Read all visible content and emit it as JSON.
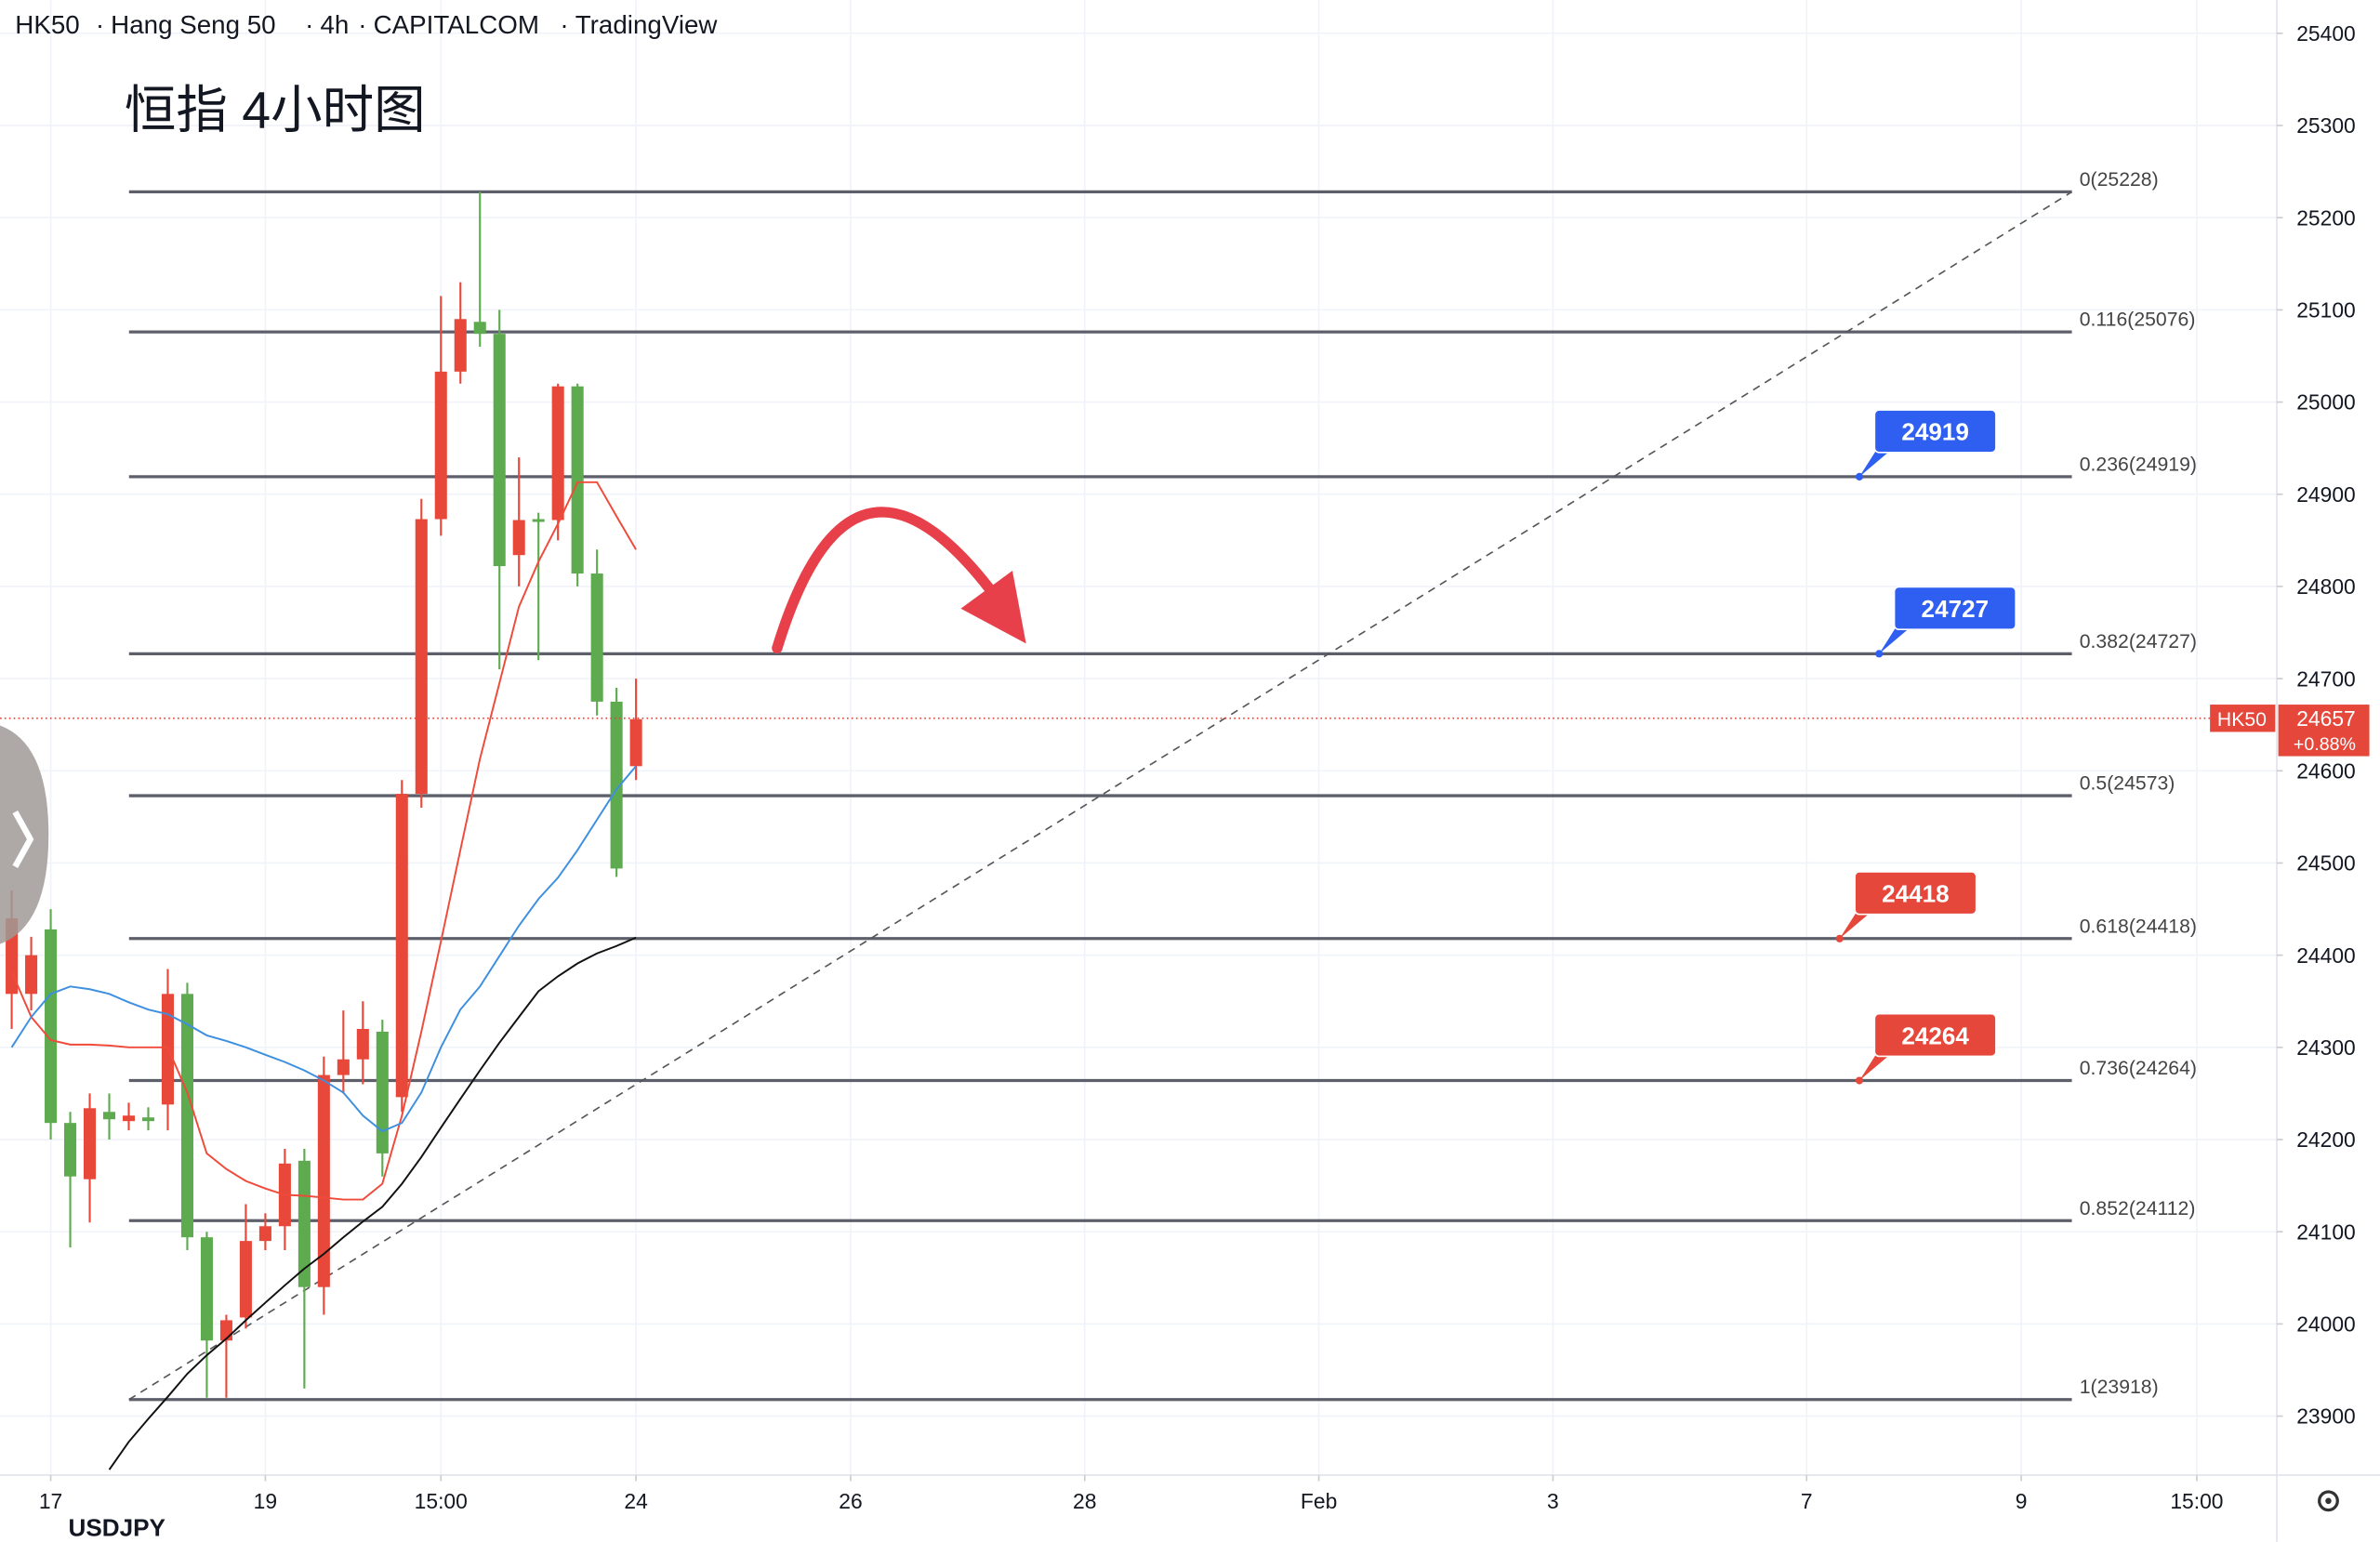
{
  "header": {
    "symbol": "HK50",
    "name": "Hang Seng 50",
    "interval": "4h",
    "exchange": "CAPITALCOM",
    "source": "TradingView"
  },
  "watermark": "USDJPY",
  "chart_data": {
    "type": "candlestick",
    "title": "恒指 4小时图",
    "up_color": "#e8483a",
    "down_color": "#5daa4f",
    "open": [
      24358,
      24358,
      24428,
      24218,
      24157,
      24230,
      24220,
      24224,
      24238,
      24358,
      24094,
      23982,
      24007,
      24090,
      24106,
      24177,
      24040,
      24270,
      24287,
      24317,
      24246,
      24575,
      24873,
      25033,
      25087,
      25074,
      24834,
      24873,
      24872,
      25017,
      24814,
      24675,
      24605
    ],
    "high": [
      24470,
      24420,
      24450,
      24230,
      24250,
      24250,
      24240,
      24235,
      24385,
      24370,
      24100,
      24010,
      24130,
      24120,
      24190,
      24190,
      24290,
      24340,
      24350,
      24330,
      24590,
      24895,
      25115,
      25130,
      25228,
      25100,
      24940,
      24880,
      25020,
      25020,
      24840,
      24690,
      24700
    ],
    "low": [
      24320,
      24340,
      24200,
      24083,
      24110,
      24200,
      24210,
      24210,
      24210,
      24080,
      23920,
      23920,
      23995,
      24080,
      24080,
      23930,
      24010,
      24250,
      24260,
      24160,
      24230,
      24560,
      24855,
      25020,
      25060,
      24710,
      24800,
      24720,
      24850,
      24800,
      24660,
      24485,
      24590
    ],
    "close": [
      24440,
      24400,
      24218,
      24160,
      24234,
      24222,
      24226,
      24220,
      24358,
      24094,
      23982,
      24004,
      24090,
      24106,
      24174,
      24040,
      24270,
      24287,
      24320,
      24185,
      24575,
      24873,
      25033,
      25090,
      25074,
      24822,
      24872,
      24870,
      25017,
      24814,
      24675,
      24494,
      24656
    ],
    "overlays": [
      {
        "color": "#f04a3a",
        "values": [
          24382,
          24333,
          24308,
          24303,
          24303,
          24302,
          24300,
          24300,
          24300,
          24251,
          24185,
          24168,
          24155,
          24147,
          24140,
          24139,
          24137,
          24135,
          24135,
          24152,
          24226,
          24317,
          24415,
          24514,
          24613,
          24695,
          24778,
          24827,
          24868,
          24913,
          24913,
          24876,
          24840
        ]
      },
      {
        "color": "#3d8fe0",
        "values": [
          24300,
          24333,
          24358,
          24366,
          24363,
          24358,
          24349,
          24341,
          24336,
          24325,
          24313,
          24307,
          24300,
          24292,
          24284,
          24275,
          24264,
          24251,
          24226,
          24209,
          24218,
          24251,
          24300,
          24341,
          24366,
          24399,
          24432,
          24461,
          24484,
          24514,
          24547,
          24580,
          24605
        ]
      },
      {
        "color": "#111111",
        "values": [
          null,
          null,
          null,
          null,
          null,
          23842,
          23872,
          23897,
          23921,
          23946,
          23966,
          23984,
          24004,
          24023,
          24042,
          24060,
          24076,
          24094,
          24111,
          24127,
          24152,
          24181,
          24213,
          24244,
          24275,
          24305,
          24333,
          24361,
          24377,
          24391,
          24402,
          24410,
          24419
        ]
      }
    ],
    "levels": [
      {
        "value": 25228,
        "label": "0(25228)"
      },
      {
        "value": 25076,
        "label": "0.116(25076)"
      },
      {
        "value": 24919,
        "label": "0.236(24919)"
      },
      {
        "value": 24727,
        "label": "0.382(24727)"
      },
      {
        "value": 24573,
        "label": "0.5(24573)"
      },
      {
        "value": 24418,
        "label": "0.618(24418)"
      },
      {
        "value": 24264,
        "label": "0.736(24264)"
      },
      {
        "value": 24112,
        "label": "0.852(24112)"
      },
      {
        "value": 23918,
        "label": "1(23918)"
      }
    ],
    "trendline": {
      "from": 23918,
      "to": 25228
    },
    "callouts": [
      {
        "value": 24919,
        "color": "#2f5ff0"
      },
      {
        "value": 24727,
        "color": "#2f5ff0"
      },
      {
        "value": 24418,
        "color": "#e5473b"
      },
      {
        "value": 24264,
        "color": "#e5473b"
      }
    ],
    "last": {
      "symbol": "HK50",
      "value": 24657,
      "change": "+0.88%",
      "color": "#e5473b"
    },
    "ylim": [
      23836,
      25436
    ],
    "yticks": [
      23900,
      24000,
      24100,
      24200,
      24300,
      24400,
      24500,
      24600,
      24700,
      24800,
      24900,
      25000,
      25100,
      25200,
      25300,
      25400
    ],
    "xlim": [
      -0.6,
      116.1
    ],
    "xticks": [
      {
        "value": 2,
        "label": "17"
      },
      {
        "value": 13,
        "label": "19"
      },
      {
        "value": 22,
        "label": "15:00"
      },
      {
        "value": 32,
        "label": "24"
      },
      {
        "value": 43,
        "label": "26"
      },
      {
        "value": 55,
        "label": "28"
      },
      {
        "value": 67,
        "label": "Feb"
      },
      {
        "value": 79,
        "label": "3"
      },
      {
        "value": 92,
        "label": "7"
      },
      {
        "value": 103,
        "label": "9"
      },
      {
        "value": 112,
        "label": "15:00"
      }
    ],
    "grid": true
  }
}
